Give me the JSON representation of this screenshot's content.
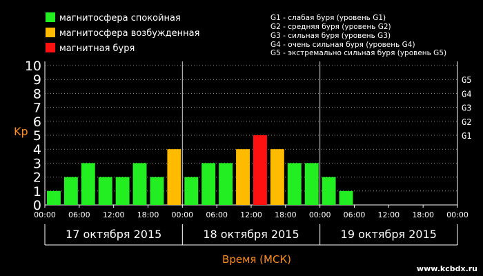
{
  "legend": [
    {
      "label": "магнитосфера спокойная",
      "color": "#22ee22"
    },
    {
      "label": "магнитосфера возбужденная",
      "color": "#ffbb00"
    },
    {
      "label": "магнитная буря",
      "color": "#ff1111"
    }
  ],
  "storm_scale": [
    "G1 - слабая буря (уровень G1)",
    "G2 - средняя буря (уровень G2)",
    "G3 - сильная буря (уровень G3)",
    "G4 - очень сильная буря (уровень G4)",
    "G5 - экстремально сильная буря (уровень G5)"
  ],
  "chart_data": {
    "type": "bar",
    "ylabel": "Kp",
    "xlabel": "Время (МСК)",
    "ylim": [
      0,
      10
    ],
    "yticks": [
      "0",
      "1",
      "2",
      "3",
      "4",
      "5",
      "6",
      "7",
      "8",
      "9",
      "10"
    ],
    "right_ticks": [
      {
        "label": "G1",
        "value": 5
      },
      {
        "label": "G2",
        "value": 6
      },
      {
        "label": "G3",
        "value": 7
      },
      {
        "label": "G4",
        "value": 8
      },
      {
        "label": "G5",
        "value": 9
      }
    ],
    "time_ticks": [
      "00:00",
      "06:00",
      "12:00",
      "18:00",
      "00:00",
      "06:00",
      "12:00",
      "18:00",
      "00:00",
      "06:00",
      "12:00",
      "18:00",
      "00:00"
    ],
    "days": [
      "17 октября 2015",
      "18 октября 2015",
      "19 октября 2015"
    ],
    "slots": 24,
    "bars": [
      {
        "value": 1,
        "level": "quiet"
      },
      {
        "value": 2,
        "level": "quiet"
      },
      {
        "value": 3,
        "level": "quiet"
      },
      {
        "value": 2,
        "level": "quiet"
      },
      {
        "value": 2,
        "level": "quiet"
      },
      {
        "value": 3,
        "level": "quiet"
      },
      {
        "value": 2,
        "level": "quiet"
      },
      {
        "value": 4,
        "level": "active"
      },
      {
        "value": 2,
        "level": "quiet"
      },
      {
        "value": 3,
        "level": "quiet"
      },
      {
        "value": 3,
        "level": "quiet"
      },
      {
        "value": 4,
        "level": "active"
      },
      {
        "value": 5,
        "level": "storm"
      },
      {
        "value": 4,
        "level": "active"
      },
      {
        "value": 3,
        "level": "quiet"
      },
      {
        "value": 3,
        "level": "quiet"
      },
      {
        "value": 2,
        "level": "quiet"
      },
      {
        "value": 1,
        "level": "quiet"
      }
    ],
    "colors": {
      "quiet": "#22ee22",
      "active": "#ffbb00",
      "storm": "#ff1111"
    },
    "grid": true
  },
  "watermark": "www.kcbdx.ru"
}
